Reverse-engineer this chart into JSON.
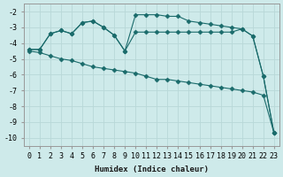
{
  "xlabel": "Humidex (Indice chaleur)",
  "bg_color": "#ceeaea",
  "grid_color": "#b8d8d8",
  "line_color": "#1a6b6b",
  "xlim": [
    -0.5,
    23.5
  ],
  "ylim": [
    -10.5,
    -1.5
  ],
  "yticks": [
    -2,
    -3,
    -4,
    -5,
    -6,
    -7,
    -8,
    -9,
    -10
  ],
  "xticks": [
    0,
    1,
    2,
    3,
    4,
    5,
    6,
    7,
    8,
    9,
    10,
    11,
    12,
    13,
    14,
    15,
    16,
    17,
    18,
    19,
    20,
    21,
    22,
    23
  ],
  "series": [
    {
      "x": [
        0,
        1,
        2,
        3,
        4,
        5,
        6,
        7,
        8,
        9,
        10,
        11,
        12,
        13,
        14,
        15,
        16,
        17,
        18,
        19,
        20,
        21,
        22,
        23
      ],
      "y": [
        -4.4,
        -4.4,
        -3.4,
        -3.2,
        -3.4,
        -2.7,
        -2.6,
        -3.0,
        -3.5,
        -4.5,
        -2.2,
        -2.2,
        -2.2,
        -2.3,
        -2.3,
        -2.6,
        -2.7,
        -2.8,
        -2.9,
        -3.0,
        -3.1,
        -3.55,
        -6.1,
        -9.7
      ],
      "marker": "D",
      "markersize": 2.5
    },
    {
      "x": [
        0,
        1,
        2,
        3,
        4,
        5,
        6,
        7,
        8,
        9,
        10,
        11,
        12,
        13,
        14,
        15,
        16,
        17,
        18,
        19,
        20,
        21,
        22,
        23
      ],
      "y": [
        -4.4,
        -4.4,
        -3.4,
        -3.2,
        -3.4,
        -2.7,
        -2.6,
        -3.0,
        -3.5,
        -4.5,
        -3.3,
        -3.3,
        -3.3,
        -3.3,
        -3.3,
        -3.3,
        -3.3,
        -3.3,
        -3.3,
        -3.3,
        -3.1,
        -3.55,
        -6.1,
        -9.7
      ],
      "marker": "D",
      "markersize": 2.5
    },
    {
      "x": [
        0,
        1,
        2,
        3,
        4,
        5,
        6,
        7,
        8,
        9,
        10,
        11,
        12,
        13,
        14,
        15,
        16,
        17,
        18,
        19,
        20,
        21,
        22,
        23
      ],
      "y": [
        -4.5,
        -4.6,
        -4.8,
        -5.0,
        -5.1,
        -5.3,
        -5.5,
        -5.6,
        -5.7,
        -5.8,
        -5.9,
        -6.1,
        -6.3,
        -6.3,
        -6.4,
        -6.5,
        -6.6,
        -6.7,
        -6.8,
        -6.9,
        -7.0,
        -7.1,
        -7.3,
        -9.7
      ],
      "marker": "D",
      "markersize": 2.5
    }
  ]
}
